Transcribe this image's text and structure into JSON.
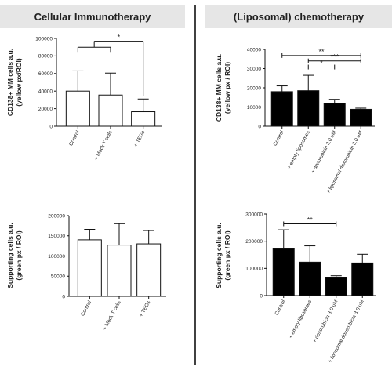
{
  "header": {
    "left_title": "Cellular Immunotherapy",
    "right_title": "(Liposomal) chemotherapy"
  },
  "chart_data": [
    {
      "id": "c1",
      "type": "bar",
      "categories": [
        "Control",
        "+ Mock T cells",
        "+ TEGs"
      ],
      "values": [
        40000,
        35500,
        16500
      ],
      "errors": [
        23000,
        25000,
        14500
      ],
      "ylim": [
        0,
        100000
      ],
      "yticks": [
        "0",
        "20000",
        "40000",
        "60000",
        "80000",
        "100000"
      ],
      "ylabel_lines": [
        "CD138+ MM cells a.u.",
        "(yellow px/ROI)"
      ],
      "bar_fill": "#ffffff",
      "significance": [
        {
          "groups": [
            [
              0,
              1
            ],
            [
              2
            ]
          ],
          "label": "*"
        }
      ]
    },
    {
      "id": "c2",
      "type": "bar",
      "categories": [
        "Control",
        "+ empty liposomes",
        "+ doxorubicin 3.0 uM",
        "+ liposomal doxorubicin 3.0 uM"
      ],
      "values": [
        18000,
        18500,
        12000,
        8800
      ],
      "errors": [
        3000,
        8000,
        2000,
        600
      ],
      "ylim": [
        0,
        40000
      ],
      "yticks": [
        "0",
        "10000",
        "20000",
        "30000",
        "40000"
      ],
      "ylabel_lines": [
        "CD138+ MM cells a.u.",
        "(yellow px / ROI)"
      ],
      "bar_fill": "#000000",
      "significance": [
        {
          "from": 0,
          "to": 3,
          "label": "**"
        },
        {
          "from": 1,
          "to": 3,
          "label": "***"
        },
        {
          "from": 1,
          "to": 2,
          "label": "*"
        }
      ]
    },
    {
      "id": "c3",
      "type": "bar",
      "categories": [
        "Control",
        "+ Mock T cells",
        "+ TEGs"
      ],
      "values": [
        140000,
        127000,
        130000
      ],
      "errors": [
        26000,
        53000,
        33000
      ],
      "ylim": [
        0,
        200000
      ],
      "yticks": [
        "0",
        "50000",
        "100000",
        "150000",
        "200000"
      ],
      "ylabel_lines": [
        "Supporting cells a.u.",
        "(green px / ROI)"
      ],
      "bar_fill": "#ffffff",
      "significance": []
    },
    {
      "id": "c4",
      "type": "bar",
      "categories": [
        "Control",
        "+ empty liposomes",
        "+ doxorubicin 3.0 uM",
        "+ liposomal doxorubicin 3.0 uM"
      ],
      "values": [
        172000,
        123000,
        66000,
        120000
      ],
      "errors": [
        70000,
        60000,
        7000,
        32000
      ],
      "ylim": [
        0,
        300000
      ],
      "yticks": [
        "0",
        "100000",
        "200000",
        "300000"
      ],
      "ylabel_lines": [
        "Supporting cells a.u.",
        "(green px / ROI)"
      ],
      "bar_fill": "#000000",
      "significance": [
        {
          "from": 0,
          "to": 2,
          "label": "**"
        }
      ]
    }
  ]
}
